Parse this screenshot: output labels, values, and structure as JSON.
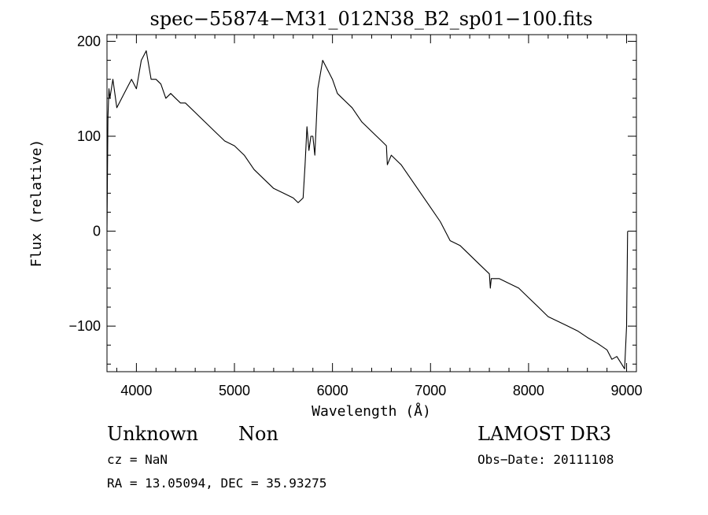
{
  "chart_data": {
    "type": "line",
    "title": "spec−55874−M31_012N38_B2_sp01−100.fits",
    "xlabel": "Wavelength (Å)",
    "ylabel": "Flux (relative)",
    "xlim": [
      3700,
      9100
    ],
    "ylim": [
      -148,
      207
    ],
    "xticks": [
      4000,
      5000,
      6000,
      7000,
      8000,
      9000
    ],
    "yticks": [
      200,
      100,
      0,
      -100
    ],
    "ytick_labels": [
      "200",
      "100",
      "0",
      "−100"
    ],
    "grid": false,
    "series": [
      {
        "x": [
          3700,
          3710,
          3720,
          3730,
          3760,
          3800,
          3850,
          3900,
          3950,
          4000,
          4050,
          4100,
          4150,
          4200,
          4250,
          4300,
          4350,
          4400,
          4450,
          4500,
          4600,
          4700,
          4800,
          4900,
          5000,
          5100,
          5200,
          5300,
          5400,
          5500,
          5600,
          5650,
          5700,
          5720,
          5740,
          5760,
          5780,
          5800,
          5820,
          5850,
          5900,
          5950,
          6000,
          6050,
          6100,
          6200,
          6300,
          6400,
          6500,
          6550,
          6560,
          6600,
          6700,
          6800,
          6900,
          7000,
          7100,
          7200,
          7300,
          7400,
          7500,
          7600,
          7610,
          7620,
          7700,
          7800,
          7900,
          8000,
          8100,
          8200,
          8300,
          8400,
          8500,
          8600,
          8700,
          8800,
          8850,
          8900,
          8950,
          8980,
          9000,
          9010
        ],
        "y": [
          0,
          120,
          150,
          140,
          160,
          130,
          140,
          150,
          160,
          150,
          180,
          190,
          160,
          160,
          155,
          140,
          145,
          140,
          135,
          135,
          125,
          115,
          105,
          95,
          90,
          80,
          65,
          55,
          45,
          40,
          35,
          30,
          35,
          70,
          110,
          85,
          100,
          100,
          80,
          150,
          180,
          170,
          160,
          145,
          140,
          130,
          115,
          105,
          95,
          90,
          70,
          80,
          70,
          55,
          40,
          25,
          10,
          -10,
          -15,
          -25,
          -35,
          -45,
          -60,
          -50,
          -50,
          -55,
          -60,
          -70,
          -80,
          -90,
          -95,
          -100,
          -105,
          -112,
          -118,
          -125,
          -135,
          -132,
          -140,
          -145,
          -100,
          0
        ]
      }
    ]
  },
  "footer": {
    "object_class": "Unknown",
    "object_subclass": "Non",
    "survey": "LAMOST DR3",
    "cz": "cz = NaN",
    "obs_date": "Obs−Date: 20111108",
    "coords": "RA =  13.05094, DEC =  35.93275"
  }
}
